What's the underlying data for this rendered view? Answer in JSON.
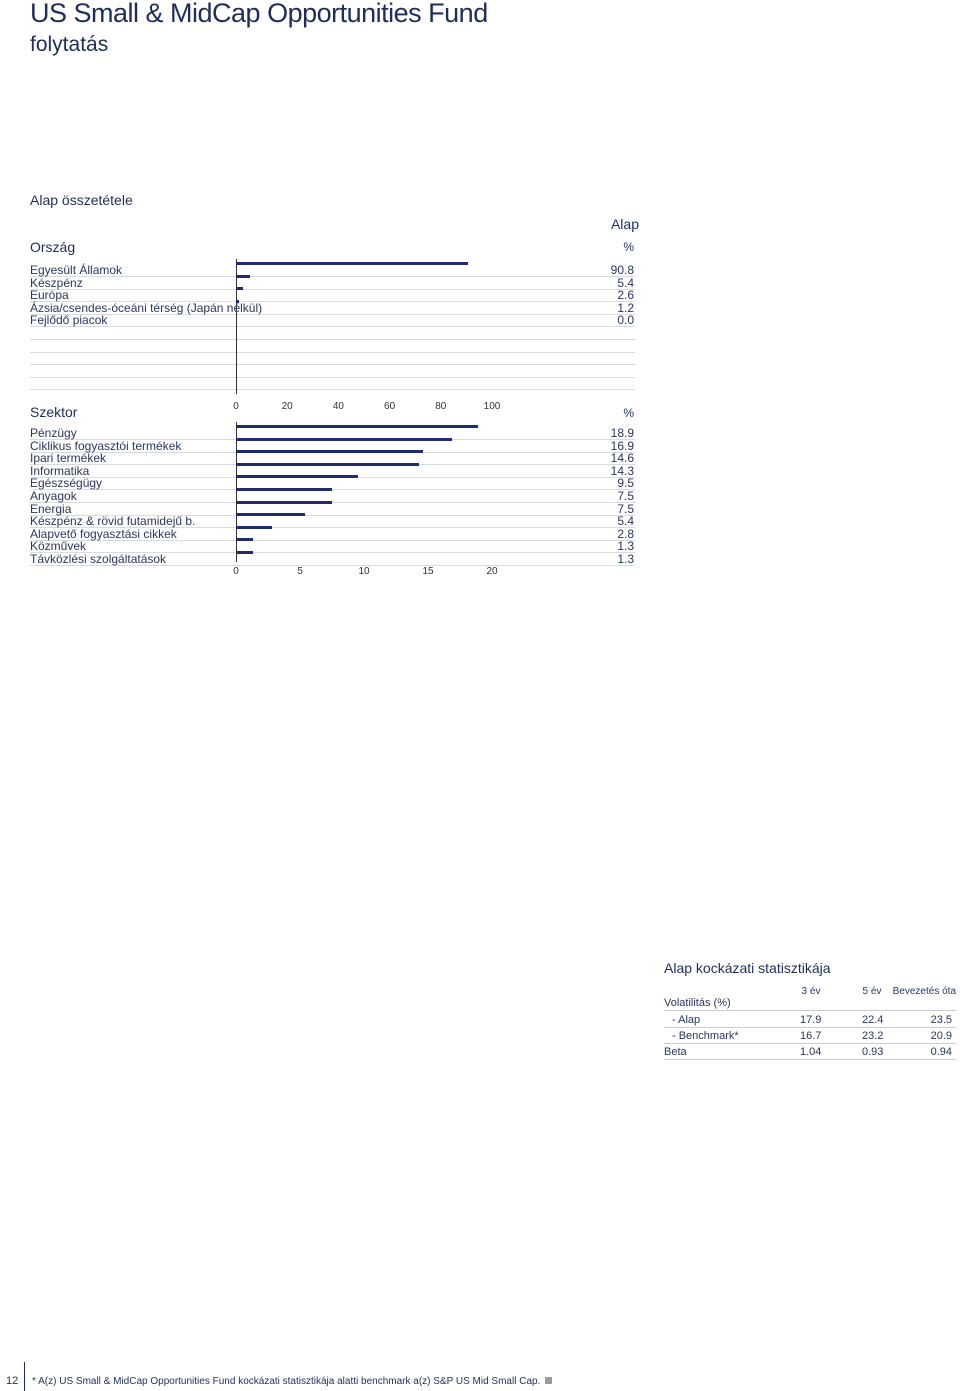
{
  "header": {
    "title": "US Small & MidCap Opportunities Fund",
    "subtitle": "folytatás"
  },
  "composition": {
    "title": "Alap összetétele",
    "column_header": "Alap",
    "country_header": "Ország",
    "sector_header": "Szektor",
    "unit": "%"
  },
  "chart_data": [
    {
      "type": "bar",
      "orientation": "horizontal",
      "categories": [
        "Egyesült Államok",
        "Készpénz",
        "Európa",
        "Ázsia/csendes-óceáni térség (Japán nélkül)",
        "Fejlődő piacok"
      ],
      "values": [
        90.8,
        5.4,
        2.6,
        1.2,
        0.0
      ],
      "value_labels": [
        "90.8",
        "5.4",
        "2.6",
        "1.2",
        "0.0"
      ],
      "xlim": [
        0,
        100
      ],
      "xticks": [
        "0",
        "20",
        "40",
        "60",
        "80",
        "100"
      ],
      "color": "#1f2d6e"
    },
    {
      "type": "bar",
      "orientation": "horizontal",
      "categories": [
        "Pénzügy",
        "Ciklikus fogyasztói termékek",
        "Ipari termékek",
        "Informatika",
        "Egészségügy",
        "Anyagok",
        "Energia",
        "Készpénz & rövid futamidejű b.",
        "Alapvető fogyasztási cikkek",
        "Közművek",
        "Távközlési szolgáltatások"
      ],
      "values": [
        18.9,
        16.9,
        14.6,
        14.3,
        9.5,
        7.5,
        7.5,
        5.4,
        2.8,
        1.3,
        1.3
      ],
      "value_labels": [
        "18.9",
        "16.9",
        "14.6",
        "14.3",
        "9.5",
        "7.5",
        "7.5",
        "5.4",
        "2.8",
        "1.3",
        "1.3"
      ],
      "xlim": [
        0,
        20
      ],
      "xticks": [
        "0",
        "5",
        "10",
        "15",
        "20"
      ],
      "color": "#1f2d6e"
    }
  ],
  "risk": {
    "title": "Alap kockázati statisztikája",
    "columns": [
      "3 év",
      "5 év",
      "Bevezetés óta"
    ],
    "volatility_label": "Volatilitás (%)",
    "rows": [
      {
        "label": "- Alap",
        "values": [
          "17.9",
          "22.4",
          "23.5"
        ]
      },
      {
        "label": "- Benchmark*",
        "values": [
          "16.7",
          "23.2",
          "20.9"
        ]
      },
      {
        "label": "Beta",
        "values": [
          "1.04",
          "0.93",
          "0.94"
        ]
      }
    ]
  },
  "footer": {
    "page_number": "12",
    "note": "* A(z) US Small & MidCap Opportunities Fund  kockázati statisztikája alatti benchmark a(z)  S&P US Mid Small Cap."
  }
}
